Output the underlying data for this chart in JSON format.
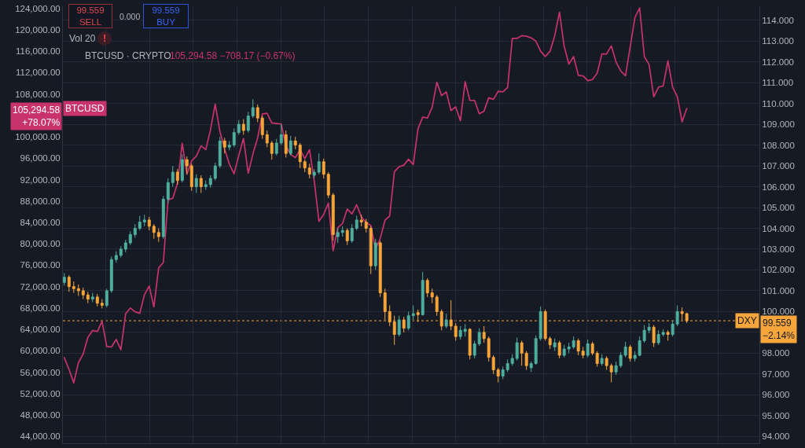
{
  "chart_data": {
    "type": "candlestick",
    "categories": [
      null,
      null,
      null,
      null,
      null,
      null,
      null,
      null,
      null,
      null,
      null,
      null,
      null,
      null,
      null,
      null,
      null,
      null,
      null,
      null,
      null,
      null,
      null,
      null,
      null,
      null,
      null,
      null,
      null,
      null,
      null,
      null,
      null,
      null,
      null,
      null,
      null,
      null,
      null,
      null,
      null,
      null,
      null,
      null,
      null,
      null,
      null,
      null,
      null,
      null,
      null,
      null,
      null,
      null,
      null,
      null,
      null,
      null,
      null,
      null,
      null,
      null,
      null,
      null,
      null,
      null,
      null,
      null,
      null,
      null,
      null,
      null,
      null,
      null,
      null,
      null,
      null,
      null,
      null,
      null,
      null,
      null,
      null,
      null,
      null,
      null,
      null,
      null,
      null,
      null,
      null,
      null,
      null,
      null,
      null,
      null,
      null,
      null,
      null,
      null,
      null,
      null,
      null,
      null,
      null,
      null,
      null,
      null,
      null,
      null,
      null,
      null,
      null,
      null,
      null,
      null,
      null,
      null,
      null,
      null,
      null,
      null,
      null,
      null,
      null,
      null,
      null,
      null,
      null,
      null,
      null,
      null,
      null
    ],
    "series": [
      {
        "name": "DXY",
        "axis": "y2",
        "ohlc": [
          [
            101.4,
            101.85,
            101.25,
            101.65
          ],
          [
            101.65,
            101.75,
            100.95,
            101.2
          ],
          [
            101.2,
            101.45,
            100.9,
            101.1
          ],
          [
            101.1,
            101.3,
            100.75,
            101.0
          ],
          [
            101.0,
            101.15,
            100.6,
            100.8
          ],
          [
            100.8,
            100.95,
            100.4,
            100.6
          ],
          [
            100.6,
            100.9,
            100.45,
            100.7
          ],
          [
            100.7,
            100.85,
            100.25,
            100.4
          ],
          [
            100.4,
            100.6,
            100.15,
            100.3
          ],
          [
            100.3,
            101.1,
            100.2,
            101.0
          ],
          [
            101.0,
            102.65,
            100.9,
            102.5
          ],
          [
            102.5,
            102.9,
            102.35,
            102.7
          ],
          [
            102.7,
            103.15,
            102.6,
            103.0
          ],
          [
            103.0,
            103.45,
            102.85,
            103.3
          ],
          [
            103.3,
            103.85,
            103.2,
            103.7
          ],
          [
            103.7,
            104.2,
            103.55,
            104.0
          ],
          [
            104.0,
            104.6,
            103.9,
            104.3
          ],
          [
            104.3,
            104.65,
            104.1,
            104.4
          ],
          [
            104.4,
            104.55,
            103.9,
            104.1
          ],
          [
            104.1,
            104.2,
            103.5,
            103.8
          ],
          [
            103.8,
            104.0,
            103.35,
            103.6
          ],
          [
            103.6,
            105.55,
            103.5,
            105.4
          ],
          [
            105.4,
            106.4,
            105.2,
            106.2
          ],
          [
            106.2,
            107.0,
            106.0,
            106.7
          ],
          [
            106.7,
            106.85,
            106.1,
            106.3
          ],
          [
            106.3,
            107.55,
            106.2,
            107.3
          ],
          [
            107.3,
            107.45,
            106.6,
            107.0
          ],
          [
            107.0,
            107.1,
            105.8,
            106.0
          ],
          [
            106.0,
            106.6,
            105.7,
            106.4
          ],
          [
            106.4,
            106.55,
            105.7,
            106.0
          ],
          [
            106.0,
            106.3,
            105.85,
            106.1
          ],
          [
            106.1,
            106.55,
            105.95,
            106.4
          ],
          [
            106.4,
            107.15,
            106.3,
            107.0
          ],
          [
            107.0,
            108.4,
            106.9,
            108.2
          ],
          [
            108.2,
            108.35,
            107.6,
            107.9
          ],
          [
            107.9,
            108.2,
            107.75,
            108.0
          ],
          [
            108.0,
            108.8,
            107.9,
            108.6
          ],
          [
            108.6,
            109.2,
            108.5,
            109.0
          ],
          [
            109.0,
            109.25,
            108.5,
            108.7
          ],
          [
            108.7,
            109.6,
            108.6,
            109.4
          ],
          [
            109.4,
            110.2,
            109.3,
            109.8
          ],
          [
            109.8,
            109.95,
            109.1,
            109.3
          ],
          [
            109.3,
            109.4,
            108.3,
            108.5
          ],
          [
            108.5,
            108.7,
            107.9,
            108.1
          ],
          [
            108.1,
            108.2,
            107.3,
            107.6
          ],
          [
            107.6,
            108.3,
            107.5,
            108.1
          ],
          [
            108.1,
            109.0,
            108.0,
            108.5
          ],
          [
            108.5,
            108.7,
            107.4,
            107.6
          ],
          [
            107.6,
            108.45,
            107.5,
            108.2
          ],
          [
            108.2,
            108.4,
            107.8,
            108.0
          ],
          [
            108.0,
            108.1,
            106.9,
            107.2
          ],
          [
            107.2,
            107.3,
            106.7,
            106.9
          ],
          [
            106.9,
            107.1,
            106.4,
            106.6
          ],
          [
            106.55,
            106.85,
            106.4,
            106.7
          ],
          [
            106.7,
            107.6,
            106.6,
            107.2
          ],
          [
            107.2,
            107.35,
            106.4,
            106.6
          ],
          [
            106.6,
            106.7,
            105.45,
            105.6
          ],
          [
            105.6,
            105.7,
            103.4,
            103.7
          ],
          [
            103.6,
            104.0,
            103.3,
            103.8
          ],
          [
            103.8,
            104.1,
            103.6,
            103.9
          ],
          [
            103.9,
            104.0,
            103.2,
            103.4
          ],
          [
            103.4,
            104.2,
            103.3,
            104.0
          ],
          [
            104.0,
            104.6,
            103.9,
            104.4
          ],
          [
            104.4,
            104.65,
            104.1,
            104.3
          ],
          [
            104.3,
            104.45,
            103.8,
            104.0
          ],
          [
            104.0,
            104.1,
            101.8,
            102.2
          ],
          [
            102.2,
            103.5,
            102.0,
            103.3
          ],
          [
            103.3,
            103.4,
            100.7,
            100.9
          ],
          [
            100.9,
            101.1,
            99.6,
            100.0
          ],
          [
            100.0,
            100.3,
            99.3,
            99.5
          ],
          [
            99.5,
            99.8,
            98.4,
            98.9
          ],
          [
            98.9,
            99.8,
            98.8,
            99.6
          ],
          [
            99.6,
            99.75,
            99.0,
            99.2
          ],
          [
            99.2,
            100.0,
            99.1,
            99.8
          ],
          [
            99.8,
            100.3,
            99.6,
            99.9
          ],
          [
            99.95,
            100.1,
            99.5,
            99.85
          ],
          [
            99.85,
            101.9,
            99.8,
            101.5
          ],
          [
            101.5,
            101.6,
            100.7,
            100.9
          ],
          [
            100.9,
            101.1,
            100.4,
            100.7
          ],
          [
            100.7,
            100.8,
            99.8,
            100.0
          ],
          [
            100.0,
            100.1,
            99.1,
            99.3
          ],
          [
            99.3,
            99.9,
            99.2,
            99.6
          ],
          [
            99.6,
            100.55,
            99.1,
            99.3
          ],
          [
            99.3,
            99.45,
            98.6,
            98.8
          ],
          [
            98.8,
            99.3,
            98.65,
            99.1
          ],
          [
            99.05,
            99.4,
            98.8,
            99.15
          ],
          [
            99.15,
            99.2,
            97.7,
            97.9
          ],
          [
            97.9,
            98.6,
            97.75,
            98.45
          ],
          [
            98.45,
            99.2,
            98.35,
            99.0
          ],
          [
            99.0,
            99.3,
            98.5,
            98.7
          ],
          [
            98.7,
            98.8,
            97.6,
            97.8
          ],
          [
            97.8,
            97.9,
            97.0,
            97.2
          ],
          [
            97.2,
            97.3,
            96.6,
            96.9
          ],
          [
            96.9,
            97.35,
            96.75,
            97.2
          ],
          [
            97.2,
            97.7,
            97.1,
            97.5
          ],
          [
            97.5,
            97.95,
            97.4,
            97.75
          ],
          [
            97.75,
            98.75,
            97.65,
            98.5
          ],
          [
            98.5,
            98.6,
            97.4,
            98.0
          ],
          [
            98.0,
            98.1,
            97.2,
            97.4
          ],
          [
            97.3,
            97.6,
            97.1,
            97.5
          ],
          [
            97.5,
            98.85,
            97.45,
            98.7
          ],
          [
            98.7,
            100.25,
            98.6,
            100.0
          ],
          [
            100.0,
            100.1,
            98.6,
            98.7
          ],
          [
            98.7,
            98.8,
            98.2,
            98.4
          ],
          [
            98.3,
            98.7,
            98.1,
            98.5
          ],
          [
            98.5,
            98.6,
            97.75,
            97.9
          ],
          [
            97.9,
            98.4,
            97.8,
            98.2
          ],
          [
            98.2,
            98.5,
            98.0,
            98.3
          ],
          [
            98.3,
            98.8,
            98.2,
            98.6
          ],
          [
            98.6,
            98.7,
            97.9,
            98.1
          ],
          [
            98.1,
            98.3,
            97.75,
            97.9
          ],
          [
            97.9,
            98.65,
            97.8,
            98.45
          ],
          [
            98.45,
            98.55,
            97.9,
            98.0
          ],
          [
            98.0,
            98.1,
            97.35,
            97.5
          ],
          [
            97.5,
            97.95,
            97.4,
            97.75
          ],
          [
            97.75,
            97.85,
            97.2,
            97.4
          ],
          [
            97.4,
            97.5,
            96.6,
            97.1
          ],
          [
            97.1,
            97.6,
            96.95,
            97.4
          ],
          [
            97.4,
            98.05,
            97.3,
            97.9
          ],
          [
            97.9,
            98.55,
            97.8,
            98.3
          ],
          [
            98.3,
            98.4,
            97.6,
            97.75
          ],
          [
            97.75,
            98.1,
            97.6,
            97.9
          ],
          [
            97.9,
            98.8,
            97.85,
            98.6
          ],
          [
            98.6,
            99.35,
            98.5,
            99.1
          ],
          [
            99.1,
            99.45,
            98.95,
            99.25
          ],
          [
            99.25,
            99.35,
            98.3,
            98.5
          ],
          [
            98.5,
            99.1,
            98.4,
            98.9
          ],
          [
            98.9,
            99.15,
            98.8,
            99.0
          ],
          [
            99.0,
            99.1,
            98.6,
            98.9
          ],
          [
            98.9,
            99.55,
            98.8,
            99.4
          ],
          [
            99.4,
            100.3,
            99.3,
            100.0
          ],
          [
            100.0,
            100.2,
            99.6,
            99.9
          ],
          [
            99.9,
            99.95,
            99.45,
            99.559
          ]
        ],
        "colors": [
          "#4fae9e",
          "#f6a53b",
          "#f6a53b",
          "#f6a53b",
          "#f6a53b",
          "#f6a53b",
          "#4fae9e",
          "#f6a53b",
          "#f6a53b",
          "#4fae9e",
          "#4fae9e",
          "#4fae9e",
          "#4fae9e",
          "#4fae9e",
          "#4fae9e",
          "#4fae9e",
          "#4fae9e",
          "#4fae9e",
          "#f6a53b",
          "#f6a53b",
          "#f6a53b",
          "#4fae9e",
          "#4fae9e",
          "#4fae9e",
          "#f6a53b",
          "#4fae9e",
          "#f6a53b",
          "#f6a53b",
          "#4fae9e",
          "#f6a53b",
          "#4fae9e",
          "#4fae9e",
          "#4fae9e",
          "#4fae9e",
          "#f6a53b",
          "#4fae9e",
          "#4fae9e",
          "#4fae9e",
          "#f6a53b",
          "#4fae9e",
          "#4fae9e",
          "#f6a53b",
          "#f6a53b",
          "#f6a53b",
          "#f6a53b",
          "#4fae9e",
          "#4fae9e",
          "#f6a53b",
          "#4fae9e",
          "#f6a53b",
          "#f6a53b",
          "#f6a53b",
          "#f6a53b",
          "#4fae9e",
          "#4fae9e",
          "#f6a53b",
          "#f6a53b",
          "#f6a53b",
          "#4fae9e",
          "#4fae9e",
          "#f6a53b",
          "#4fae9e",
          "#4fae9e",
          "#f6a53b",
          "#f6a53b",
          "#f6a53b",
          "#4fae9e",
          "#f6a53b",
          "#f6a53b",
          "#f6a53b",
          "#f6a53b",
          "#4fae9e",
          "#f6a53b",
          "#4fae9e",
          "#4fae9e",
          "#f6a53b",
          "#4fae9e",
          "#f6a53b",
          "#f6a53b",
          "#f6a53b",
          "#f6a53b",
          "#4fae9e",
          "#f6a53b",
          "#f6a53b",
          "#4fae9e",
          "#4fae9e",
          "#f6a53b",
          "#4fae9e",
          "#4fae9e",
          "#f6a53b",
          "#f6a53b",
          "#f6a53b",
          "#f6a53b",
          "#4fae9e",
          "#4fae9e",
          "#4fae9e",
          "#4fae9e",
          "#f6a53b",
          "#f6a53b",
          "#4fae9e",
          "#4fae9e",
          "#4fae9e",
          "#f6a53b",
          "#f6a53b",
          "#4fae9e",
          "#f6a53b",
          "#4fae9e",
          "#4fae9e",
          "#4fae9e",
          "#f6a53b",
          "#f6a53b",
          "#4fae9e",
          "#f6a53b",
          "#f6a53b",
          "#4fae9e",
          "#f6a53b",
          "#f6a53b",
          "#4fae9e",
          "#4fae9e",
          "#4fae9e",
          "#f6a53b",
          "#4fae9e",
          "#4fae9e",
          "#4fae9e",
          "#4fae9e",
          "#f6a53b",
          "#4fae9e",
          "#4fae9e",
          "#f6a53b",
          "#4fae9e",
          "#4fae9e",
          "#f6a53b",
          "#f6a53b"
        ]
      },
      {
        "name": "BTCUSD",
        "type": "line",
        "color": "#c8336c",
        "values": [
          58700,
          56500,
          54000,
          57800,
          59400,
          62500,
          63800,
          63600,
          65500,
          60800,
          60700,
          62100,
          60200,
          66900,
          68000,
          67300,
          67000,
          70500,
          72100,
          68200,
          75500,
          76500,
          88200,
          88500,
          91300,
          98800,
          93000,
          95500,
          96400,
          98300,
          97600,
          101300,
          106100,
          101000,
          97700,
          94900,
          93100,
          96500,
          99700,
          93200,
          96800,
          99800,
          104300,
          104400,
          102600,
          102500,
          102400,
          98300,
          96700,
          96100,
          97600,
          95900,
          97600,
          91800,
          84200,
          85500,
          87600,
          78700,
          83000,
          83800,
          86500,
          85600,
          87300,
          85000,
          84000,
          83400,
          79000,
          81000,
          84400,
          85200,
          93500,
          94400,
          94700,
          95800,
          94800,
          101500,
          103700,
          103500,
          105500,
          110200,
          107700,
          108400,
          104900,
          105600,
          103000,
          110300,
          106800,
          106800,
          104300,
          104800,
          107300,
          107000,
          108500,
          108400,
          109200,
          118400,
          118400,
          118900,
          118800,
          118500,
          117900,
          116000,
          115000,
          116000,
          118900,
          123300,
          116900,
          113600,
          115000,
          111500,
          111400,
          110500,
          110700,
          111900,
          115500,
          115500,
          117000,
          114000,
          112300,
          111400,
          116800,
          122300,
          124100,
          115000,
          113500,
          107500,
          109300,
          109500,
          114200,
          109300,
          107500,
          102800,
          105294.58
        ]
      }
    ],
    "ylim": [
      42700,
      124400
    ],
    "yticks": [
      {
        "value": 44000,
        "label": "44,000.00"
      },
      {
        "value": 48000,
        "label": "48,000.00"
      },
      {
        "value": 52000,
        "label": "52,000.00"
      },
      {
        "value": 56000,
        "label": "56,000.00"
      },
      {
        "value": 60000,
        "label": "60,000.00"
      },
      {
        "value": 64000,
        "label": "64,000.00"
      },
      {
        "value": 68000,
        "label": "68,000.00"
      },
      {
        "value": 72000,
        "label": "72,000.00"
      },
      {
        "value": 76000,
        "label": "76,000.00"
      },
      {
        "value": 80000,
        "label": "80,000.00"
      },
      {
        "value": 84000,
        "label": "84,000.00"
      },
      {
        "value": 88000,
        "label": "88,000.00"
      },
      {
        "value": 92000,
        "label": "92,000.00"
      },
      {
        "value": 96000,
        "label": "96,000.00"
      },
      {
        "value": 100000,
        "label": "100,000.00"
      },
      {
        "value": 108000,
        "label": "108,000.00"
      },
      {
        "value": 112000,
        "label": "112,000.00"
      },
      {
        "value": 116000,
        "label": "116,000.00"
      },
      {
        "value": 120000,
        "label": "120,000.00"
      },
      {
        "value": 124000,
        "label": "124,000.00"
      }
    ],
    "y2lim": [
      93.67,
      114.67
    ],
    "y2ticks": [
      {
        "value": 94,
        "label": "94.000"
      },
      {
        "value": 95,
        "label": "95.000"
      },
      {
        "value": 96,
        "label": "96.000"
      },
      {
        "value": 97,
        "label": "97.000"
      },
      {
        "value": 98,
        "label": "98.000"
      },
      {
        "value": 99,
        "label": null
      },
      {
        "value": 100,
        "label": "100.000"
      },
      {
        "value": 101,
        "label": "101.000"
      },
      {
        "value": 102,
        "label": "102.000"
      },
      {
        "value": 103,
        "label": "103.000"
      },
      {
        "value": 104,
        "label": "104.000"
      },
      {
        "value": 105,
        "label": "105.000"
      },
      {
        "value": 106,
        "label": "106.000"
      },
      {
        "value": 107,
        "label": "107.000"
      },
      {
        "value": 108,
        "label": "108.000"
      },
      {
        "value": 109,
        "label": "109.000"
      },
      {
        "value": 110,
        "label": "110.000"
      },
      {
        "value": 111,
        "label": "111.000"
      },
      {
        "value": 112,
        "label": "112.000"
      },
      {
        "value": 113,
        "label": "113.000"
      },
      {
        "value": 114,
        "label": "114.000"
      }
    ],
    "grid": true,
    "tick_labels": "y",
    "ref_lines": [
      {
        "axis": "y2",
        "value": 99.559,
        "label": "99.559\n−2.14%",
        "color": "#f6a53b",
        "line_style": "dotted"
      }
    ],
    "annotations": [
      "99.559\nSELL",
      "0.000",
      "99.559\nBUY",
      "Vol 20",
      "!",
      "BTCUSD · CRYPTO",
      "105,294.58 −708.17 (−0.67%)",
      "105,294.58\n+78.07%"
    ]
  }
}
